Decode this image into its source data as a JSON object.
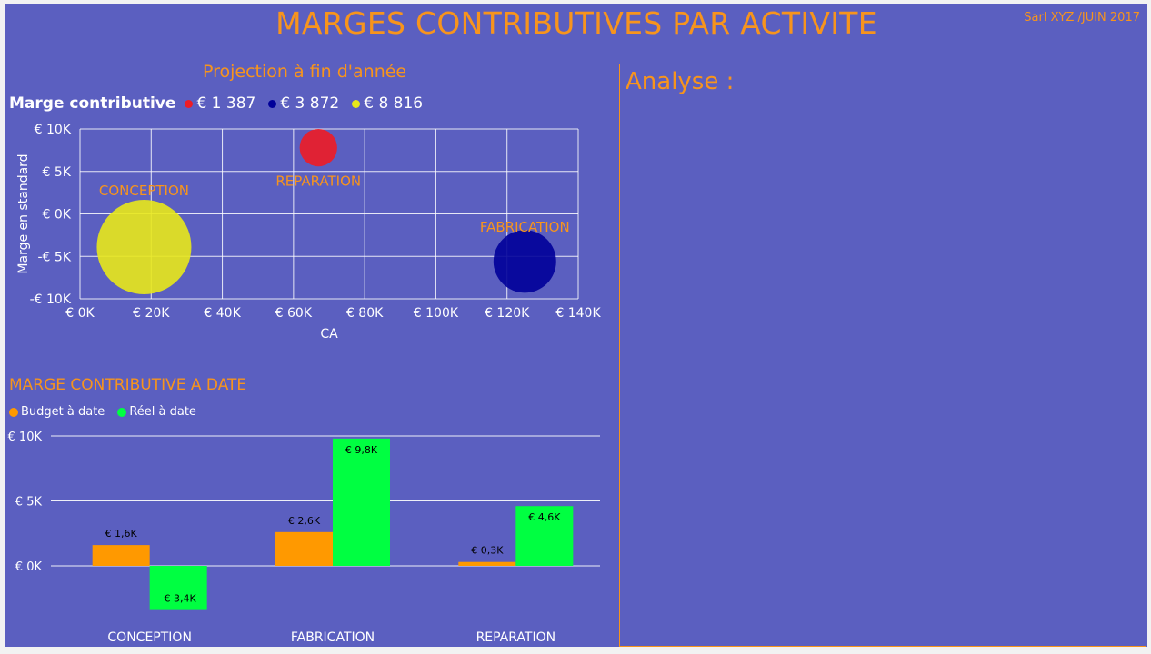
{
  "header": {
    "title": "MARGES CONTRIBUTIVES PAR ACTIVITE",
    "company": "Sarl XYZ /JUIN 2017"
  },
  "analysis": {
    "label": "Analyse :"
  },
  "chart_data": [
    {
      "type": "bubble",
      "title": "Projection à fin d'année",
      "legend_title": "Marge contributive",
      "xlabel": "CA",
      "ylabel": "Marge en standard",
      "xlim": [
        0,
        140000
      ],
      "ylim": [
        -10000,
        10000
      ],
      "x_ticks": [
        {
          "value": 0,
          "label": "€ 0K"
        },
        {
          "value": 20000,
          "label": "€ 20K"
        },
        {
          "value": 40000,
          "label": "€ 40K"
        },
        {
          "value": 60000,
          "label": "€ 60K"
        },
        {
          "value": 80000,
          "label": "€ 80K"
        },
        {
          "value": 100000,
          "label": "€ 100K"
        },
        {
          "value": 120000,
          "label": "€ 120K"
        },
        {
          "value": 140000,
          "label": "€ 140K"
        }
      ],
      "y_ticks": [
        {
          "value": 10000,
          "label": "€ 10K"
        },
        {
          "value": 5000,
          "label": "€ 5K"
        },
        {
          "value": 0,
          "label": "€ 0K"
        },
        {
          "value": -5000,
          "label": "-€ 5K"
        },
        {
          "value": -10000,
          "label": "-€ 10K"
        }
      ],
      "grid": true,
      "legend_position": "top-left",
      "points": [
        {
          "name": "REPARATION",
          "x": 67000,
          "y": 7800,
          "size": 1387,
          "size_label": "€ 1 387",
          "color": "#ee1c25"
        },
        {
          "name": "FABRICATION",
          "x": 125000,
          "y": -5600,
          "size": 3872,
          "size_label": "€ 3 872",
          "color": "#000099"
        },
        {
          "name": "CONCEPTION",
          "x": 18000,
          "y": -3900,
          "size": 8816,
          "size_label": "€ 8 816",
          "color": "#e8e81a"
        }
      ]
    },
    {
      "type": "bar",
      "title": "MARGE CONTRIBUTIVE A DATE",
      "categories": [
        "CONCEPTION",
        "FABRICATION",
        "REPARATION"
      ],
      "ylim": [
        -3500,
        10000
      ],
      "y_ticks": [
        {
          "value": 10000,
          "label": "€ 10K"
        },
        {
          "value": 5000,
          "label": "€ 5K"
        },
        {
          "value": 0,
          "label": "€ 0K"
        }
      ],
      "grid": true,
      "legend_position": "top-left",
      "series": [
        {
          "name": "Budget à date",
          "color": "#ff9900",
          "values": [
            1600,
            2600,
            300
          ],
          "labels": [
            "€ 1,6K",
            "€ 2,6K",
            "€ 0,3K"
          ]
        },
        {
          "name": "Réel à date",
          "color": "#00ff41",
          "values": [
            -3400,
            9800,
            4600
          ],
          "labels": [
            "-€ 3,4K",
            "€ 9,8K",
            "€ 4,6K"
          ]
        }
      ]
    }
  ]
}
